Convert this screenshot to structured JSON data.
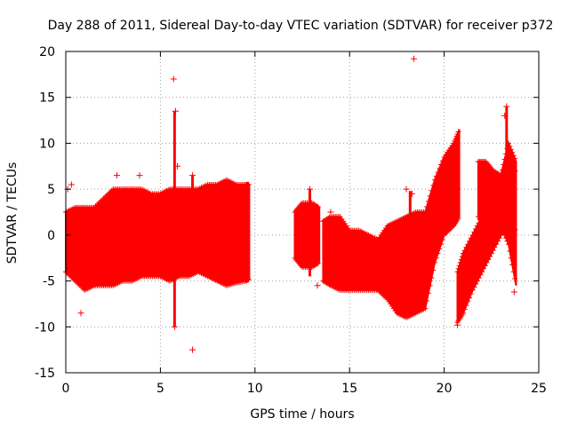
{
  "chart_data": {
    "type": "scatter",
    "title": "Day 288 of 2011, Sidereal Day-to-day VTEC variation (SDTVAR) for receiver p372",
    "xlabel": "GPS time / hours",
    "ylabel": "SDTVAR / TECUs",
    "xlim": [
      0,
      25
    ],
    "ylim": [
      -15,
      20
    ],
    "grid": true,
    "marker": "+",
    "color": "#ff0000",
    "xticks": [
      0,
      5,
      10,
      15,
      20,
      25
    ],
    "yticks": [
      -15,
      -10,
      -5,
      0,
      5,
      10,
      15,
      20
    ],
    "xtick_labels": [
      "0",
      "5",
      "10",
      "15",
      "20",
      "25"
    ],
    "ytick_labels": [
      "-15",
      "-10",
      "-5",
      "0",
      "5",
      "10",
      "15",
      "20"
    ],
    "bands": [
      {
        "name": "segment-1",
        "x": [
          0.0,
          0.5,
          1.0,
          1.5,
          2.0,
          2.5,
          3.0,
          3.5,
          4.0,
          4.5,
          5.0,
          5.5,
          6.0,
          6.5,
          7.0,
          7.5,
          8.0,
          8.5,
          9.0,
          9.5,
          9.7
        ],
        "lower": [
          -4.0,
          -5.0,
          -6.0,
          -5.5,
          -5.5,
          -5.5,
          -5.0,
          -5.0,
          -4.5,
          -4.5,
          -4.5,
          -5.0,
          -4.5,
          -4.5,
          -4.0,
          -4.5,
          -5.0,
          -5.5,
          -5.2,
          -5.0,
          -4.8
        ],
        "upper": [
          2.5,
          3.0,
          3.0,
          3.0,
          4.0,
          5.0,
          5.0,
          5.0,
          5.0,
          4.5,
          4.5,
          5.0,
          5.0,
          5.0,
          5.0,
          5.5,
          5.5,
          6.0,
          5.5,
          5.5,
          5.5
        ]
      },
      {
        "name": "segment-2",
        "x": [
          12.1,
          12.5,
          13.0,
          13.4
        ],
        "lower": [
          -2.5,
          -3.5,
          -3.5,
          -3.0
        ],
        "upper": [
          2.5,
          3.5,
          3.5,
          3.0
        ]
      },
      {
        "name": "segment-3",
        "x": [
          13.6,
          14.0,
          14.5,
          15.0,
          15.5,
          16.0,
          16.5,
          17.0,
          17.5,
          18.0,
          18.5,
          19.0,
          19.5,
          20.0,
          20.5,
          20.8
        ],
        "lower": [
          -5.0,
          -5.5,
          -6.0,
          -6.0,
          -6.0,
          -6.0,
          -6.0,
          -7.0,
          -8.5,
          -9.0,
          -8.5,
          -8.0,
          -3.0,
          0.0,
          1.0,
          2.0
        ],
        "upper": [
          1.5,
          2.0,
          2.0,
          0.5,
          0.5,
          0.0,
          -0.5,
          1.0,
          1.5,
          2.0,
          2.5,
          2.5,
          6.0,
          8.5,
          10.0,
          11.5
        ]
      },
      {
        "name": "segment-4",
        "x": [
          20.7,
          21.0,
          21.5,
          22.0,
          22.5,
          23.0,
          23.5,
          23.8
        ],
        "lower": [
          -9.5,
          -8.5,
          -6.0,
          -4.0,
          -2.0,
          0.0,
          1.0,
          0.5
        ],
        "upper": [
          -4.0,
          -2.0,
          0.0,
          2.0,
          3.0,
          5.0,
          7.0,
          7.0
        ]
      },
      {
        "name": "segment-5",
        "x": [
          21.8,
          22.2,
          22.6,
          23.0,
          23.4,
          23.8
        ],
        "lower": [
          2.0,
          0.5,
          2.0,
          1.0,
          -1.0,
          -5.5
        ],
        "upper": [
          8.0,
          8.0,
          7.0,
          6.5,
          10.0,
          8.0
        ]
      }
    ],
    "outliers": [
      {
        "x": 5.7,
        "y": 17.0
      },
      {
        "x": 5.8,
        "y": 13.5
      },
      {
        "x": 5.75,
        "y": -10.0
      },
      {
        "x": 6.7,
        "y": -12.5
      },
      {
        "x": 6.7,
        "y": 6.5
      },
      {
        "x": 0.3,
        "y": 5.5
      },
      {
        "x": 0.1,
        "y": 5.0
      },
      {
        "x": 2.7,
        "y": 6.5
      },
      {
        "x": 3.9,
        "y": 6.5
      },
      {
        "x": 18.4,
        "y": 19.2
      },
      {
        "x": 23.3,
        "y": 14.0
      },
      {
        "x": 23.2,
        "y": 13.0
      },
      {
        "x": 18.0,
        "y": 5.0
      },
      {
        "x": 18.3,
        "y": 4.5
      },
      {
        "x": 12.9,
        "y": 5.0
      },
      {
        "x": 13.3,
        "y": -5.5
      },
      {
        "x": 0.8,
        "y": -8.5
      },
      {
        "x": 14.0,
        "y": 2.5
      },
      {
        "x": 20.7,
        "y": -9.8
      },
      {
        "x": 23.7,
        "y": -6.2
      },
      {
        "x": 5.9,
        "y": 7.5
      }
    ],
    "spikes": [
      {
        "x": 5.75,
        "y0": -10.0,
        "y1": 13.5
      },
      {
        "x": 6.7,
        "y0": -4.0,
        "y1": 6.5
      },
      {
        "x": 23.3,
        "y0": 3.0,
        "y1": 14.0
      },
      {
        "x": 18.2,
        "y0": 0.0,
        "y1": 4.8
      },
      {
        "x": 12.9,
        "y0": -4.5,
        "y1": 5.0
      }
    ]
  }
}
